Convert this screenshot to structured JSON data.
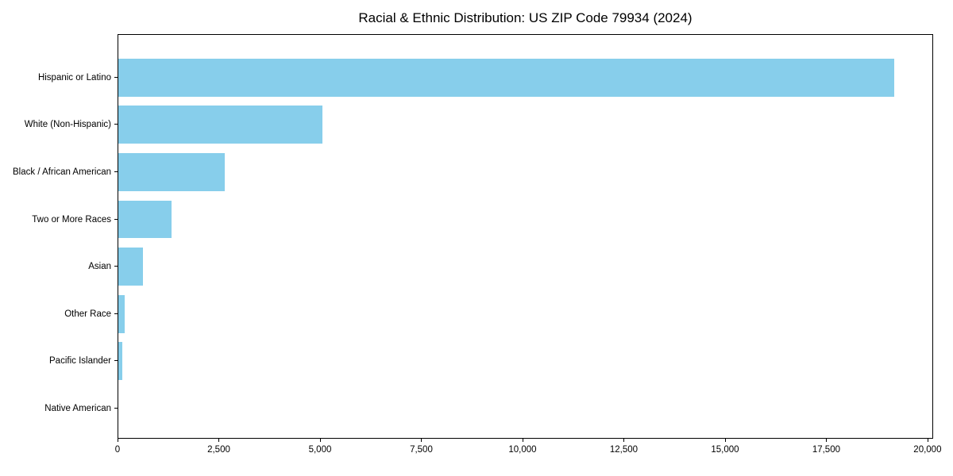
{
  "colors": {
    "bar_fill": "#87CEEB",
    "axis": "#000000",
    "text": "#000000",
    "background": "#ffffff"
  },
  "chart_data": {
    "type": "bar",
    "orientation": "horizontal",
    "title": "Racial & Ethnic Distribution: US ZIP Code 79934 (2024)",
    "categories": [
      "Hispanic or Latino",
      "White (Non-Hispanic)",
      "Black / African American",
      "Two or More Races",
      "Asian",
      "Other Race",
      "Pacific Islander",
      "Native American"
    ],
    "values": [
      19150,
      5040,
      2630,
      1310,
      610,
      155,
      105,
      0
    ],
    "xlabel": "",
    "ylabel": "",
    "xlim": [
      0,
      20100
    ],
    "x_ticks": [
      0,
      2500,
      5000,
      7500,
      10000,
      12500,
      15000,
      17500,
      20000
    ],
    "x_tick_labels": [
      "0",
      "2,500",
      "5,000",
      "7,500",
      "10,000",
      "12,500",
      "15,000",
      "17,500",
      "20,000"
    ],
    "grid": false,
    "legend": false
  }
}
